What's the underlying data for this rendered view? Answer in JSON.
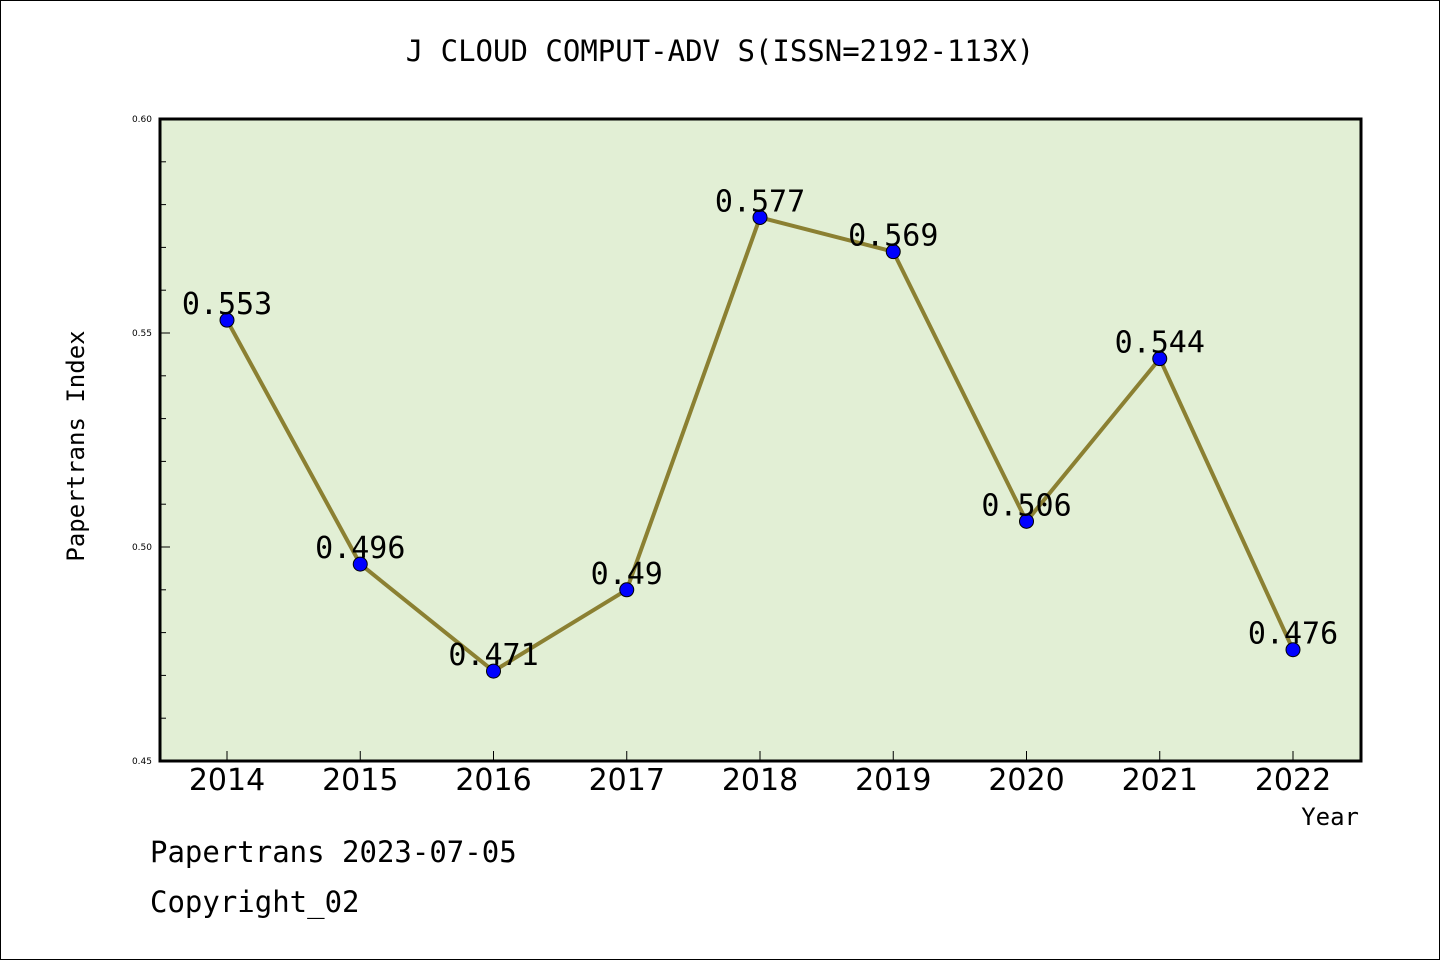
{
  "chart_data": {
    "type": "line",
    "title": "J CLOUD COMPUT-ADV S(ISSN=2192-113X)",
    "xlabel": "Year",
    "ylabel": "Papertrans Index",
    "categories": [
      "2014",
      "2015",
      "2016",
      "2017",
      "2018",
      "2019",
      "2020",
      "2021",
      "2022"
    ],
    "values": [
      0.553,
      0.496,
      0.471,
      0.49,
      0.577,
      0.569,
      0.506,
      0.544,
      0.476
    ],
    "data_labels": [
      "0.553",
      "0.496",
      "0.471",
      "0.49",
      "0.577",
      "0.569",
      "0.506",
      "0.544",
      "0.476"
    ],
    "ylim": [
      0.45,
      0.6
    ],
    "yticks": [
      0.45,
      0.5,
      0.55,
      0.6
    ],
    "ytick_labels": [
      "0.45",
      "0.50",
      "0.55",
      "0.60"
    ],
    "grid": false,
    "colors": {
      "plot_background": "#e2efd5",
      "line": "#8b8032",
      "marker": "#0000ff"
    }
  },
  "footer": {
    "line1": "Papertrans 2023-07-05",
    "line2": "Copyright_02"
  }
}
